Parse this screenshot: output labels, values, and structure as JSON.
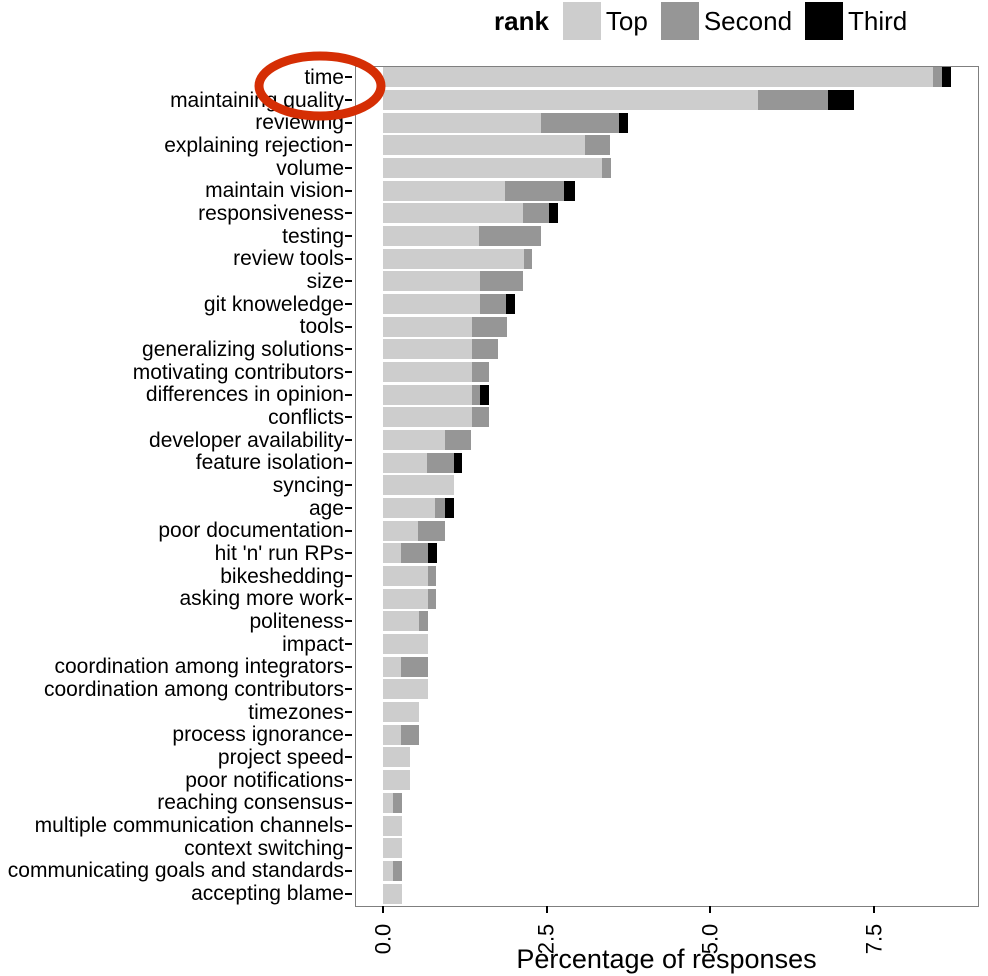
{
  "legend": {
    "title": "rank"
  },
  "chart_data": {
    "type": "bar",
    "orientation": "horizontal",
    "stacked": true,
    "title": "",
    "xlabel": "Percentage of responses",
    "ylabel": "",
    "xlim": [
      0,
      9.1
    ],
    "grid": false,
    "legend_position": "top",
    "legend_title": "rank",
    "x_ticks": [
      {
        "label": "0.0",
        "value": 0
      },
      {
        "label": "2.5",
        "value": 2.5
      },
      {
        "label": "5.0",
        "value": 5
      },
      {
        "label": "7.5",
        "value": 7.5
      }
    ],
    "categories": [
      "time",
      "maintaining quality",
      "reviewing",
      "explaining rejection",
      "volume",
      "maintain vision",
      "responsiveness",
      "testing",
      "review tools",
      "size",
      "git knoweledge",
      "tools",
      "generalizing solutions",
      "motivating contributors",
      "differences in opinion",
      "conflicts",
      "developer availability",
      "feature isolation",
      "syncing",
      "age",
      "poor documentation",
      "hit 'n' run RPs",
      "bikeshedding",
      "asking more work",
      "politeness",
      "impact",
      "coordination among integrators",
      "coordination among contributors",
      "timezones",
      "process ignorance",
      "project speed",
      "poor notifications",
      "reaching consensus",
      "multiple communication channels",
      "context switching",
      "communicating goals and standards",
      "accepting blame"
    ],
    "series": [
      {
        "name": "Top",
        "color": "#cdcdcd",
        "values": [
          8.4,
          5.73,
          2.42,
          3.08,
          3.34,
          1.87,
          2.14,
          1.47,
          2.15,
          1.48,
          1.48,
          1.36,
          1.36,
          1.36,
          1.36,
          1.36,
          0.94,
          0.67,
          1.08,
          0.8,
          0.54,
          0.27,
          0.68,
          0.68,
          0.55,
          0.68,
          0.28,
          0.68,
          0.55,
          0.28,
          0.42,
          0.42,
          0.15,
          0.29,
          0.29,
          0.15,
          0.29
        ]
      },
      {
        "name": "Second",
        "color": "#969696",
        "values": [
          0.14,
          1.07,
          1.19,
          0.38,
          0.14,
          0.9,
          0.39,
          0.95,
          0.13,
          0.66,
          0.4,
          0.53,
          0.4,
          0.26,
          0.12,
          0.26,
          0.4,
          0.41,
          0,
          0.14,
          0.4,
          0.42,
          0.13,
          0.13,
          0.13,
          0,
          0.4,
          0,
          0,
          0.27,
          0,
          0,
          0.14,
          0,
          0,
          0.14,
          0
        ]
      },
      {
        "name": "Third",
        "color": "#000000",
        "values": [
          0.14,
          0.39,
          0.14,
          0,
          0,
          0.17,
          0.15,
          0,
          0,
          0,
          0.13,
          0,
          0,
          0,
          0.14,
          0,
          0,
          0.13,
          0,
          0.14,
          0,
          0.14,
          0,
          0,
          0,
          0,
          0,
          0,
          0,
          0,
          0,
          0,
          0,
          0,
          0,
          0,
          0
        ]
      }
    ],
    "annotation": {
      "type": "ellipse",
      "target_category": "time",
      "color": "#d52e04"
    }
  }
}
